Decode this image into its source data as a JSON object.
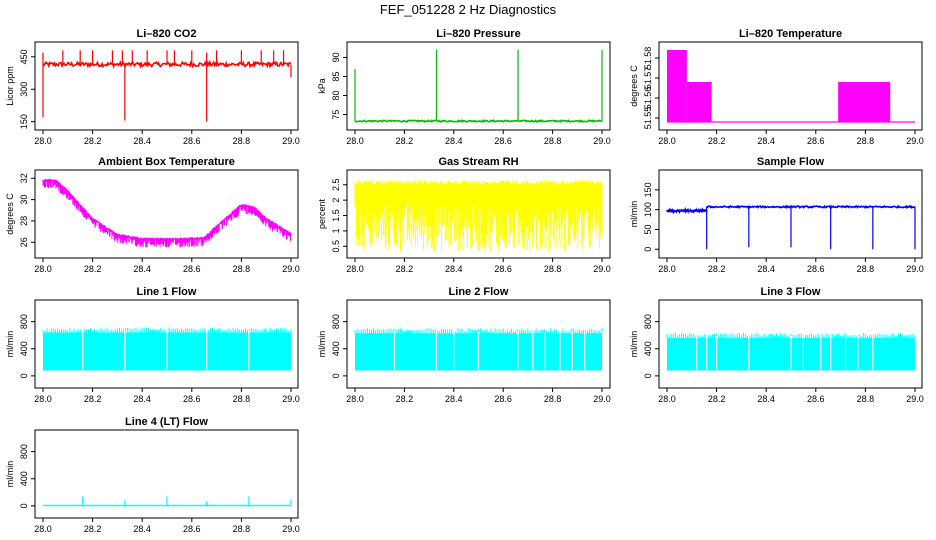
{
  "figure_title": "FEF_051228  2 Hz Diagnostics",
  "chart_data": [
    {
      "type": "line",
      "title": "Li–820 CO2",
      "ylabel": "Licor ppm",
      "color": "#ff0000",
      "x_ticks": [
        "28.0",
        "28.2",
        "28.4",
        "28.6",
        "28.8",
        "29.0"
      ],
      "y_ticks": [
        150,
        300,
        450
      ],
      "xlim": [
        28.0,
        29.0
      ],
      "ylim": [
        130,
        500
      ],
      "baseline": 415,
      "noise": 10,
      "segments": [
        [
          28.0,
          29.0
        ]
      ],
      "spikes_up": [
        [
          28.0,
          470
        ],
        [
          28.08,
          480
        ],
        [
          28.15,
          480
        ],
        [
          28.2,
          480
        ],
        [
          28.28,
          480
        ],
        [
          28.32,
          480
        ],
        [
          28.36,
          480
        ],
        [
          28.42,
          480
        ],
        [
          28.5,
          480
        ],
        [
          28.53,
          480
        ],
        [
          28.6,
          480
        ],
        [
          28.66,
          470
        ],
        [
          28.7,
          480
        ],
        [
          28.8,
          480
        ],
        [
          28.88,
          480
        ],
        [
          28.93,
          480
        ],
        [
          28.97,
          480
        ]
      ],
      "spikes_down": [
        [
          28.0,
          170
        ],
        [
          28.33,
          155
        ],
        [
          28.66,
          150
        ],
        [
          29.0,
          355
        ]
      ]
    },
    {
      "type": "line",
      "title": "Li–820 Pressure",
      "ylabel": "kPa",
      "color": "#00bb00",
      "x_ticks": [
        "28.0",
        "28.2",
        "28.4",
        "28.6",
        "28.8",
        "29.0"
      ],
      "y_ticks": [
        75,
        80,
        85,
        90
      ],
      "xlim": [
        28.0,
        29.0
      ],
      "ylim": [
        72,
        93
      ],
      "baseline": 73.3,
      "noise": 0.2,
      "segments": [
        [
          28.0,
          29.0
        ]
      ],
      "spikes_up": [
        [
          28.0,
          87
        ],
        [
          28.33,
          92
        ],
        [
          28.66,
          92
        ],
        [
          29.0,
          92
        ]
      ],
      "spikes_down": []
    },
    {
      "type": "area",
      "title": "Li–820 Temperature",
      "ylabel": "degrees C",
      "color": "#ff00ff",
      "x_ticks": [
        "28.0",
        "28.2",
        "28.4",
        "28.6",
        "28.8",
        "29.0"
      ],
      "y_ticks": [
        51.55,
        51.56,
        51.57,
        51.58
      ],
      "xlim": [
        28.0,
        29.0
      ],
      "ylim": [
        51.546,
        51.586
      ],
      "baseline": 51.548,
      "bands": [
        {
          "x0": 28.0,
          "x1": 28.08,
          "y0": 51.548,
          "y1": 51.584
        },
        {
          "x0": 28.08,
          "x1": 28.18,
          "y0": 51.548,
          "y1": 51.568
        },
        {
          "x0": 28.69,
          "x1": 28.9,
          "y0": 51.548,
          "y1": 51.568
        }
      ]
    },
    {
      "type": "line",
      "title": "Ambient Box Temperature",
      "ylabel": "degrees C",
      "color": "#ff00ff",
      "x_ticks": [
        "28.0",
        "28.2",
        "28.4",
        "28.6",
        "28.8",
        "29.0"
      ],
      "y_ticks": [
        26,
        28,
        30,
        32
      ],
      "xlim": [
        28.0,
        29.0
      ],
      "ylim": [
        24.9,
        32.4
      ],
      "curve": [
        [
          28.0,
          31.8
        ],
        [
          28.05,
          31.8
        ],
        [
          28.1,
          30.8
        ],
        [
          28.2,
          28.2
        ],
        [
          28.3,
          26.7
        ],
        [
          28.4,
          26.3
        ],
        [
          28.5,
          26.3
        ],
        [
          28.55,
          26.3
        ],
        [
          28.65,
          26.4
        ],
        [
          28.7,
          27.5
        ],
        [
          28.8,
          29.5
        ],
        [
          28.85,
          29.3
        ],
        [
          28.9,
          28.2
        ],
        [
          29.0,
          26.8
        ]
      ],
      "noise": 0.8,
      "segments": [
        [
          28.0,
          29.0
        ]
      ]
    },
    {
      "type": "area",
      "title": "Gas Stream RH",
      "ylabel": "percent",
      "color": "#ffff00",
      "x_ticks": [
        "28.0",
        "28.2",
        "28.4",
        "28.6",
        "28.8",
        "29.0"
      ],
      "y_ticks": [
        0.5,
        1.0,
        1.5,
        2.0,
        2.5
      ],
      "xlim": [
        28.0,
        29.0
      ],
      "ylim": [
        0.25,
        2.85
      ],
      "upper": 2.65,
      "lower_min": 0.3,
      "lower_max": 1.9
    },
    {
      "type": "line",
      "title": "Sample Flow",
      "ylabel": "ml/min",
      "color": "#0000ff",
      "x_ticks": [
        "28.0",
        "28.2",
        "28.4",
        "28.6",
        "28.8",
        "29.0"
      ],
      "y_ticks": [
        0,
        50,
        100,
        150
      ],
      "xlim": [
        28.0,
        29.0
      ],
      "ylim": [
        -12,
        190
      ],
      "baseline": 103,
      "noise": 2,
      "segments": [
        [
          28.0,
          28.16
        ],
        [
          28.16,
          29.0
        ]
      ],
      "segment_levels": [
        97,
        107
      ],
      "spikes_up": [
        [
          28.5,
          112
        ]
      ],
      "spikes_down": [
        [
          28.16,
          0
        ],
        [
          28.33,
          5
        ],
        [
          28.5,
          5
        ],
        [
          28.66,
          0
        ],
        [
          28.83,
          0
        ],
        [
          29.0,
          0
        ]
      ]
    },
    {
      "type": "area",
      "title": "Line 1 Flow",
      "ylabel": "ml/min",
      "color": "#00ffff",
      "x_ticks": [
        "28.0",
        "28.2",
        "28.4",
        "28.6",
        "28.8",
        "29.0"
      ],
      "y_ticks": [
        0,
        400,
        800
      ],
      "y_ticks_labels": [
        "0",
        "400",
        "800"
      ],
      "xlim": [
        28.0,
        29.0
      ],
      "ylim": [
        -120,
        1060
      ],
      "upper": 640,
      "lower": 80,
      "gaps": [
        28.16,
        28.33,
        28.5,
        28.66,
        28.83
      ]
    },
    {
      "type": "area",
      "title": "Line 2 Flow",
      "ylabel": "ml/min",
      "color": "#00ffff",
      "x_ticks": [
        "28.0",
        "28.2",
        "28.4",
        "28.6",
        "28.8",
        "29.0"
      ],
      "y_ticks": [
        0,
        400,
        800
      ],
      "xlim": [
        28.0,
        29.0
      ],
      "ylim": [
        -120,
        1060
      ],
      "upper": 630,
      "lower": 80,
      "gaps": [
        28.16,
        28.33,
        28.4,
        28.5,
        28.66,
        28.72,
        28.77,
        28.83,
        28.88,
        28.93
      ]
    },
    {
      "type": "area",
      "title": "Line 3 Flow",
      "ylabel": "ml/min",
      "color": "#00ffff",
      "x_ticks": [
        "28.0",
        "28.2",
        "28.4",
        "28.6",
        "28.8",
        "29.0"
      ],
      "y_ticks": [
        0,
        400,
        800
      ],
      "xlim": [
        28.0,
        29.0
      ],
      "ylim": [
        -120,
        1060
      ],
      "upper": 560,
      "lower": 80,
      "gaps": [
        28.12,
        28.16,
        28.2,
        28.33,
        28.5,
        28.55,
        28.62,
        28.66,
        28.72,
        28.77,
        28.83
      ]
    },
    {
      "type": "line",
      "title": "Line 4 (LT) Flow",
      "ylabel": "ml/min",
      "color": "#00ffff",
      "x_ticks": [
        "28.0",
        "28.2",
        "28.4",
        "28.6",
        "28.8",
        "29.0"
      ],
      "y_ticks": [
        0,
        400,
        800
      ],
      "xlim": [
        28.0,
        29.0
      ],
      "ylim": [
        -120,
        1060
      ],
      "baseline": 5,
      "noise": 0,
      "segments": [
        [
          28.0,
          29.0
        ]
      ],
      "spikes_up": [
        [
          28.16,
          140
        ],
        [
          28.33,
          80
        ],
        [
          28.5,
          140
        ],
        [
          28.66,
          70
        ],
        [
          28.83,
          140
        ],
        [
          29.0,
          100
        ]
      ],
      "spikes_down": []
    }
  ]
}
